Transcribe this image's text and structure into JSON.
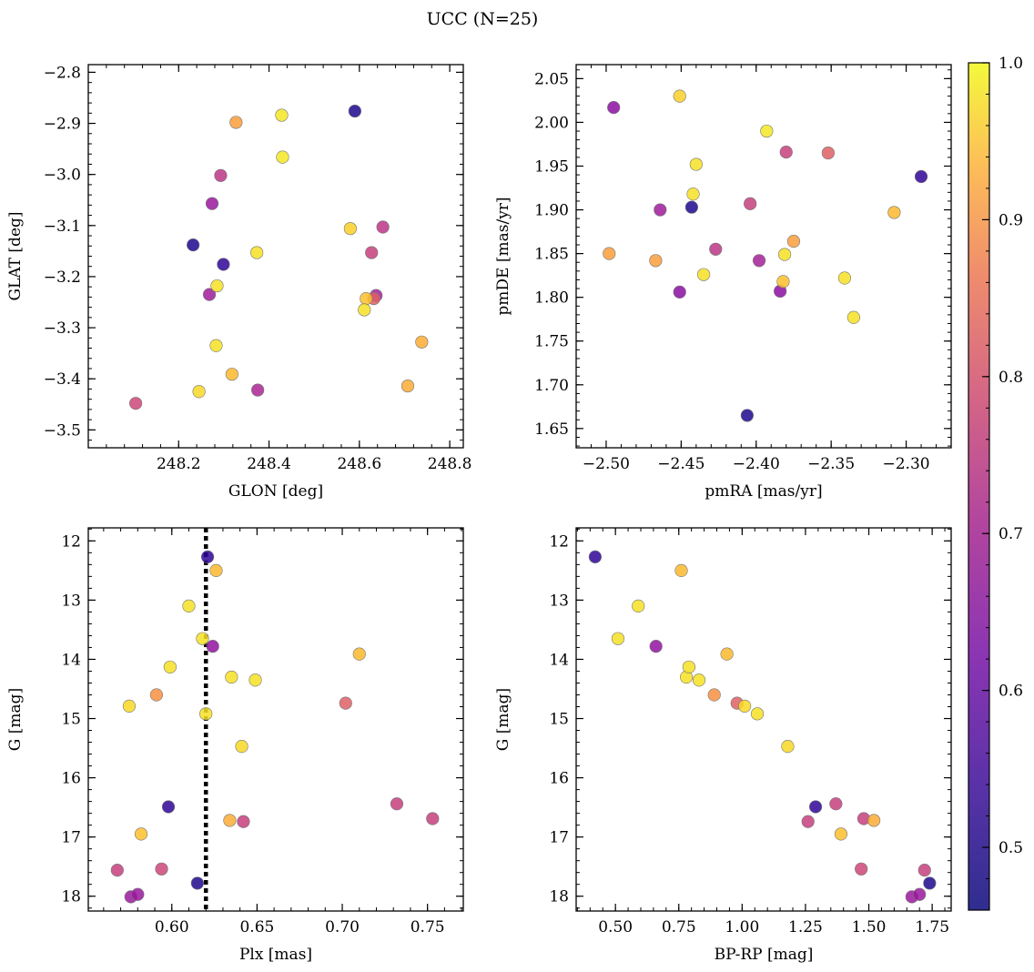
{
  "figure": {
    "title": "UCC (N=25)"
  },
  "colorbar": {
    "min": 0.46,
    "max": 1.0,
    "ticks": [
      0.5,
      0.6,
      0.7,
      0.8,
      0.9,
      1.0
    ]
  },
  "chart_data": [
    {
      "type": "scatter",
      "id": "radec",
      "xlabel": "GLON [deg]",
      "ylabel": "GLAT [deg]",
      "xlim": [
        248.0,
        248.83
      ],
      "ylim": [
        -3.535,
        -2.785
      ],
      "xticks": [
        248.2,
        248.4,
        248.6,
        248.8
      ],
      "yticks": [
        -3.5,
        -3.4,
        -3.3,
        -3.2,
        -3.1,
        -3.0,
        -2.9,
        -2.8
      ],
      "points": [
        {
          "x": 248.105,
          "y": -3.448,
          "c": 0.73
        },
        {
          "x": 248.232,
          "y": -3.138,
          "c": 0.48
        },
        {
          "x": 248.245,
          "y": -3.425,
          "c": 0.96
        },
        {
          "x": 248.268,
          "y": -3.235,
          "c": 0.65
        },
        {
          "x": 248.274,
          "y": -3.057,
          "c": 0.64
        },
        {
          "x": 248.283,
          "y": -3.335,
          "c": 0.97
        },
        {
          "x": 248.285,
          "y": -3.218,
          "c": 0.97
        },
        {
          "x": 248.293,
          "y": -3.002,
          "c": 0.7
        },
        {
          "x": 248.299,
          "y": -3.176,
          "c": 0.5
        },
        {
          "x": 248.318,
          "y": -3.391,
          "c": 0.92
        },
        {
          "x": 248.327,
          "y": -2.898,
          "c": 0.88
        },
        {
          "x": 248.373,
          "y": -3.153,
          "c": 0.97
        },
        {
          "x": 248.375,
          "y": -3.422,
          "c": 0.67
        },
        {
          "x": 248.428,
          "y": -2.884,
          "c": 0.98
        },
        {
          "x": 248.43,
          "y": -2.966,
          "c": 0.98
        },
        {
          "x": 248.58,
          "y": -3.106,
          "c": 0.95
        },
        {
          "x": 248.59,
          "y": -2.876,
          "c": 0.48
        },
        {
          "x": 248.611,
          "y": -3.265,
          "c": 0.97
        },
        {
          "x": 248.615,
          "y": -3.243,
          "c": 0.93
        },
        {
          "x": 248.627,
          "y": -3.153,
          "c": 0.72
        },
        {
          "x": 248.632,
          "y": -3.243,
          "c": 0.78
        },
        {
          "x": 248.637,
          "y": -3.237,
          "c": 0.66
        },
        {
          "x": 248.652,
          "y": -3.103,
          "c": 0.7
        },
        {
          "x": 248.707,
          "y": -3.414,
          "c": 0.9
        },
        {
          "x": 248.738,
          "y": -3.328,
          "c": 0.9
        }
      ]
    },
    {
      "type": "scatter",
      "id": "pm",
      "xlabel": "pmRA [mas/yr]",
      "ylabel": "pmDE [mas/yr]",
      "xlim": [
        -2.52,
        -2.27
      ],
      "ylim": [
        1.628,
        2.066
      ],
      "xticks": [
        -2.5,
        -2.45,
        -2.4,
        -2.35,
        -2.3
      ],
      "yticks": [
        1.65,
        1.7,
        1.75,
        1.8,
        1.85,
        1.9,
        1.95,
        2.0,
        2.05
      ],
      "points": [
        {
          "x": -2.498,
          "y": 1.85,
          "c": 0.88
        },
        {
          "x": -2.495,
          "y": 2.017,
          "c": 0.62
        },
        {
          "x": -2.467,
          "y": 1.842,
          "c": 0.88
        },
        {
          "x": -2.464,
          "y": 1.9,
          "c": 0.65
        },
        {
          "x": -2.451,
          "y": 1.806,
          "c": 0.62
        },
        {
          "x": -2.451,
          "y": 2.03,
          "c": 0.95
        },
        {
          "x": -2.443,
          "y": 1.903,
          "c": 0.48
        },
        {
          "x": -2.442,
          "y": 1.918,
          "c": 0.97
        },
        {
          "x": -2.44,
          "y": 1.952,
          "c": 0.97
        },
        {
          "x": -2.435,
          "y": 1.826,
          "c": 0.97
        },
        {
          "x": -2.427,
          "y": 1.855,
          "c": 0.7
        },
        {
          "x": -2.406,
          "y": 1.665,
          "c": 0.48
        },
        {
          "x": -2.404,
          "y": 1.907,
          "c": 0.72
        },
        {
          "x": -2.398,
          "y": 1.842,
          "c": 0.66
        },
        {
          "x": -2.393,
          "y": 1.99,
          "c": 0.98
        },
        {
          "x": -2.384,
          "y": 1.807,
          "c": 0.62
        },
        {
          "x": -2.382,
          "y": 1.818,
          "c": 0.93
        },
        {
          "x": -2.381,
          "y": 1.849,
          "c": 0.97
        },
        {
          "x": -2.38,
          "y": 1.966,
          "c": 0.72
        },
        {
          "x": -2.375,
          "y": 1.864,
          "c": 0.88
        },
        {
          "x": -2.352,
          "y": 1.965,
          "c": 0.78
        },
        {
          "x": -2.341,
          "y": 1.822,
          "c": 0.97
        },
        {
          "x": -2.335,
          "y": 1.777,
          "c": 0.97
        },
        {
          "x": -2.308,
          "y": 1.897,
          "c": 0.92
        },
        {
          "x": -2.29,
          "y": 1.938,
          "c": 0.5
        }
      ]
    },
    {
      "type": "scatter",
      "id": "plx",
      "xlabel": "Plx [mas]",
      "ylabel": "G [mag]",
      "xlim": [
        0.551,
        0.771
      ],
      "ylim": [
        18.25,
        11.78
      ],
      "xticks": [
        0.6,
        0.65,
        0.7,
        0.75
      ],
      "yticks": [
        12,
        13,
        14,
        15,
        16,
        17,
        18
      ],
      "vline": 0.62,
      "points": [
        {
          "x": 0.568,
          "y": 17.56,
          "c": 0.72
        },
        {
          "x": 0.575,
          "y": 14.79,
          "c": 0.96
        },
        {
          "x": 0.576,
          "y": 18.01,
          "c": 0.64
        },
        {
          "x": 0.58,
          "y": 17.97,
          "c": 0.64
        },
        {
          "x": 0.582,
          "y": 16.95,
          "c": 0.93
        },
        {
          "x": 0.591,
          "y": 14.6,
          "c": 0.86
        },
        {
          "x": 0.594,
          "y": 17.54,
          "c": 0.73
        },
        {
          "x": 0.598,
          "y": 16.49,
          "c": 0.5
        },
        {
          "x": 0.599,
          "y": 14.13,
          "c": 0.97
        },
        {
          "x": 0.61,
          "y": 13.1,
          "c": 0.97
        },
        {
          "x": 0.615,
          "y": 17.78,
          "c": 0.48
        },
        {
          "x": 0.618,
          "y": 13.65,
          "c": 0.97
        },
        {
          "x": 0.62,
          "y": 14.92,
          "c": 0.97
        },
        {
          "x": 0.621,
          "y": 12.27,
          "c": 0.5
        },
        {
          "x": 0.624,
          "y": 13.78,
          "c": 0.63
        },
        {
          "x": 0.626,
          "y": 12.5,
          "c": 0.92
        },
        {
          "x": 0.634,
          "y": 16.72,
          "c": 0.9
        },
        {
          "x": 0.635,
          "y": 14.3,
          "c": 0.97
        },
        {
          "x": 0.641,
          "y": 15.47,
          "c": 0.96
        },
        {
          "x": 0.642,
          "y": 16.74,
          "c": 0.72
        },
        {
          "x": 0.649,
          "y": 14.35,
          "c": 0.97
        },
        {
          "x": 0.702,
          "y": 14.74,
          "c": 0.78
        },
        {
          "x": 0.71,
          "y": 13.91,
          "c": 0.92
        },
        {
          "x": 0.732,
          "y": 16.44,
          "c": 0.72
        },
        {
          "x": 0.753,
          "y": 16.69,
          "c": 0.72
        }
      ]
    },
    {
      "type": "scatter",
      "id": "cmd",
      "xlabel": "BP-RP [mag]",
      "ylabel": "G [mag]",
      "xlim": [
        0.345,
        1.825
      ],
      "ylim": [
        18.25,
        11.78
      ],
      "xticks": [
        0.5,
        0.75,
        1.0,
        1.25,
        1.5,
        1.75
      ],
      "yticks": [
        12,
        13,
        14,
        15,
        16,
        17,
        18
      ],
      "points": [
        {
          "x": 0.42,
          "y": 12.27,
          "c": 0.5
        },
        {
          "x": 0.51,
          "y": 13.65,
          "c": 0.97
        },
        {
          "x": 0.59,
          "y": 13.1,
          "c": 0.97
        },
        {
          "x": 0.66,
          "y": 13.78,
          "c": 0.63
        },
        {
          "x": 0.76,
          "y": 12.5,
          "c": 0.92
        },
        {
          "x": 0.78,
          "y": 14.3,
          "c": 0.97
        },
        {
          "x": 0.79,
          "y": 14.13,
          "c": 0.97
        },
        {
          "x": 0.83,
          "y": 14.35,
          "c": 0.97
        },
        {
          "x": 0.89,
          "y": 14.6,
          "c": 0.86
        },
        {
          "x": 0.94,
          "y": 13.91,
          "c": 0.92
        },
        {
          "x": 0.98,
          "y": 14.74,
          "c": 0.78
        },
        {
          "x": 1.01,
          "y": 14.79,
          "c": 0.96
        },
        {
          "x": 1.06,
          "y": 14.92,
          "c": 0.97
        },
        {
          "x": 1.18,
          "y": 15.47,
          "c": 0.96
        },
        {
          "x": 1.26,
          "y": 16.74,
          "c": 0.72
        },
        {
          "x": 1.29,
          "y": 16.49,
          "c": 0.5
        },
        {
          "x": 1.37,
          "y": 16.44,
          "c": 0.72
        },
        {
          "x": 1.39,
          "y": 16.95,
          "c": 0.93
        },
        {
          "x": 1.47,
          "y": 17.54,
          "c": 0.73
        },
        {
          "x": 1.48,
          "y": 16.69,
          "c": 0.72
        },
        {
          "x": 1.52,
          "y": 16.72,
          "c": 0.9
        },
        {
          "x": 1.67,
          "y": 18.01,
          "c": 0.64
        },
        {
          "x": 1.7,
          "y": 17.97,
          "c": 0.64
        },
        {
          "x": 1.72,
          "y": 17.56,
          "c": 0.72
        },
        {
          "x": 1.74,
          "y": 17.78,
          "c": 0.48
        }
      ]
    }
  ]
}
